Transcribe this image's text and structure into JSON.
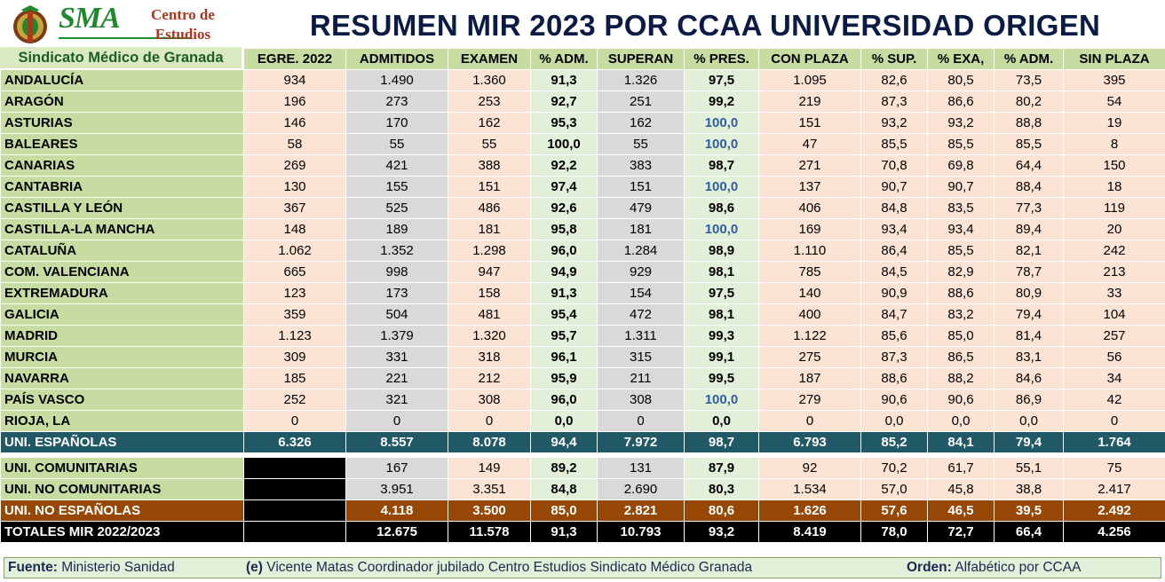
{
  "logo": {
    "sma": "SMA",
    "centro_line1": "Centro de",
    "centro_line2": "Estudios",
    "subtitle": "Sindicato Médico de Granada"
  },
  "title": "RESUMEN MIR 2023 POR CCAA UNIVERSIDAD ORIGEN",
  "columns": [
    "EGRE. 2022",
    "ADMITIDOS",
    "EXAMEN",
    "% ADM.",
    "SUPERAN",
    "% PRES.",
    "CON PLAZA",
    "% SUP.",
    "% EXA,",
    "% ADM.",
    "SIN PLAZA"
  ],
  "rows": [
    {
      "name": "ANDALUCÍA",
      "v": [
        "934",
        "1.490",
        "1.360",
        "91,3",
        "1.326",
        "97,5",
        "1.095",
        "82,6",
        "80,5",
        "73,5",
        "395"
      ]
    },
    {
      "name": "ARAGÓN",
      "v": [
        "196",
        "273",
        "253",
        "92,7",
        "251",
        "99,2",
        "219",
        "87,3",
        "86,6",
        "80,2",
        "54"
      ]
    },
    {
      "name": "ASTURIAS",
      "v": [
        "146",
        "170",
        "162",
        "95,3",
        "162",
        "100,0",
        "151",
        "93,2",
        "93,2",
        "88,8",
        "19"
      ]
    },
    {
      "name": "BALEARES",
      "v": [
        "58",
        "55",
        "55",
        "100,0",
        "55",
        "100,0",
        "47",
        "85,5",
        "85,5",
        "85,5",
        "8"
      ]
    },
    {
      "name": "CANARIAS",
      "v": [
        "269",
        "421",
        "388",
        "92,2",
        "383",
        "98,7",
        "271",
        "70,8",
        "69,8",
        "64,4",
        "150"
      ]
    },
    {
      "name": "CANTABRIA",
      "v": [
        "130",
        "155",
        "151",
        "97,4",
        "151",
        "100,0",
        "137",
        "90,7",
        "90,7",
        "88,4",
        "18"
      ]
    },
    {
      "name": "CASTILLA Y LEÓN",
      "v": [
        "367",
        "525",
        "486",
        "92,6",
        "479",
        "98,6",
        "406",
        "84,8",
        "83,5",
        "77,3",
        "119"
      ]
    },
    {
      "name": "CASTILLA-LA MANCHA",
      "v": [
        "148",
        "189",
        "181",
        "95,8",
        "181",
        "100,0",
        "169",
        "93,4",
        "93,4",
        "89,4",
        "20"
      ]
    },
    {
      "name": "CATALUÑA",
      "v": [
        "1.062",
        "1.352",
        "1.298",
        "96,0",
        "1.284",
        "98,9",
        "1.110",
        "86,4",
        "85,5",
        "82,1",
        "242"
      ]
    },
    {
      "name": "COM. VALENCIANA",
      "v": [
        "665",
        "998",
        "947",
        "94,9",
        "929",
        "98,1",
        "785",
        "84,5",
        "82,9",
        "78,7",
        "213"
      ]
    },
    {
      "name": "EXTREMADURA",
      "v": [
        "123",
        "173",
        "158",
        "91,3",
        "154",
        "97,5",
        "140",
        "90,9",
        "88,6",
        "80,9",
        "33"
      ]
    },
    {
      "name": "GALICIA",
      "v": [
        "359",
        "504",
        "481",
        "95,4",
        "472",
        "98,1",
        "400",
        "84,7",
        "83,2",
        "79,4",
        "104"
      ]
    },
    {
      "name": "MADRID",
      "v": [
        "1.123",
        "1.379",
        "1.320",
        "95,7",
        "1.311",
        "99,3",
        "1.122",
        "85,6",
        "85,0",
        "81,4",
        "257"
      ]
    },
    {
      "name": "MURCIA",
      "v": [
        "309",
        "331",
        "318",
        "96,1",
        "315",
        "99,1",
        "275",
        "87,3",
        "86,5",
        "83,1",
        "56"
      ]
    },
    {
      "name": "NAVARRA",
      "v": [
        "185",
        "221",
        "212",
        "95,9",
        "211",
        "99,5",
        "187",
        "88,6",
        "88,2",
        "84,6",
        "34"
      ]
    },
    {
      "name": "PAÍS VASCO",
      "v": [
        "252",
        "321",
        "308",
        "96,0",
        "308",
        "100,0",
        "279",
        "90,6",
        "90,6",
        "86,9",
        "42"
      ]
    },
    {
      "name": "RIOJA, LA",
      "v": [
        "0",
        "0",
        "0",
        "0,0",
        "0",
        "0,0",
        "0",
        "0,0",
        "0,0",
        "0,0",
        "0"
      ]
    }
  ],
  "uni_espanolas": {
    "name": "UNI. ESPAÑOLAS",
    "v": [
      "6.326",
      "8.557",
      "8.078",
      "94,4",
      "7.972",
      "98,7",
      "6.793",
      "85,2",
      "84,1",
      "79,4",
      "1.764"
    ]
  },
  "uni_comunitarias": {
    "name": "UNI. COMUNITARIAS",
    "v": [
      "",
      "167",
      "149",
      "89,2",
      "131",
      "87,9",
      "92",
      "70,2",
      "61,7",
      "55,1",
      "75"
    ]
  },
  "uni_no_comunitarias": {
    "name": "UNI. NO COMUNITARIAS",
    "v": [
      "",
      "3.951",
      "3.351",
      "84,8",
      "2.690",
      "80,3",
      "1.534",
      "57,0",
      "45,8",
      "38,8",
      "2.417"
    ]
  },
  "uni_no_espanolas": {
    "name": "UNI. NO ESPAÑOLAS",
    "v": [
      "",
      "4.118",
      "3.500",
      "85,0",
      "2.821",
      "80,6",
      "1.626",
      "57,6",
      "46,5",
      "39,5",
      "2.492"
    ]
  },
  "totales": {
    "name": "TOTALES MIR 2022/2023",
    "v": [
      "",
      "12.675",
      "11.578",
      "91,3",
      "10.793",
      "93,2",
      "8.419",
      "78,0",
      "72,7",
      "66,4",
      "4.256"
    ]
  },
  "footer": {
    "fuente_label": "Fuente:",
    "fuente_value": "Ministerio Sanidad",
    "autor_label": "(e)",
    "autor_value": "Vicente Matas Coordinador jubilado Centro Estudios Sindicato Médico Granada",
    "orden_label": "Orden:",
    "orden_value": "Alfabético por CCAA"
  },
  "colors": {
    "header_green": "#c6dca1",
    "peach": "#fce4d4",
    "gray": "#d9d9d9",
    "light_green": "#e2efd9",
    "teal": "#215967",
    "brown": "#974706",
    "title_navy": "#0b1b46",
    "blue_value": "#2f5f9e"
  }
}
